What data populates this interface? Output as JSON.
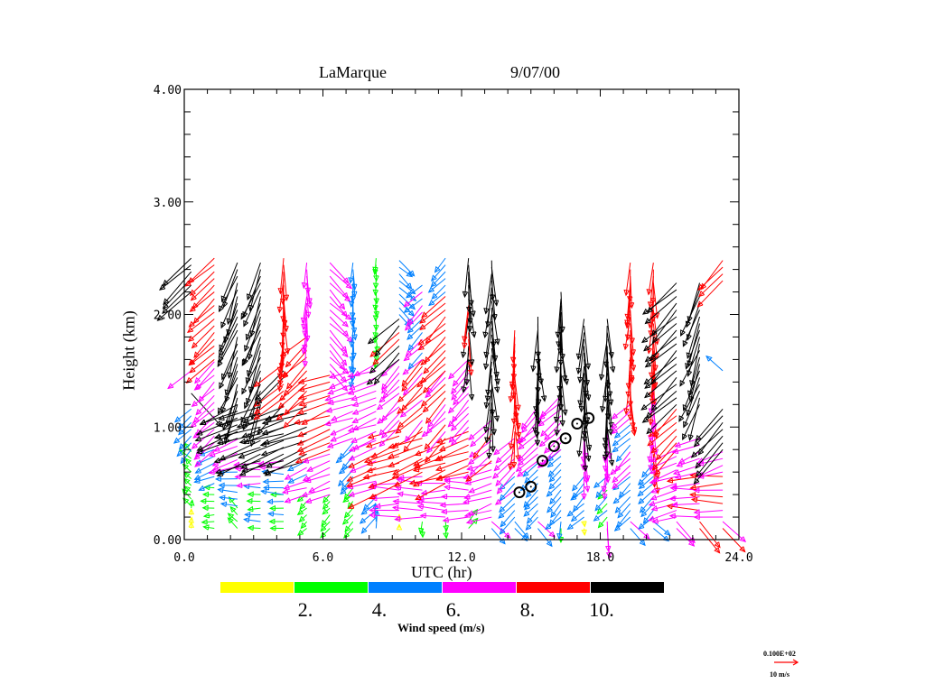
{
  "chart_data": {
    "type": "vector",
    "title": {
      "site": "LaMarque",
      "date": "9/07/00"
    },
    "xlabel": "UTC (hr)",
    "ylabel": "Height (km)",
    "xlim": [
      0,
      24
    ],
    "ylim": [
      0,
      4
    ],
    "xticks": [
      0,
      6,
      12,
      18,
      24
    ],
    "xtick_labels": [
      "0.0",
      "6.0",
      "12.0",
      "18.0",
      "24.0"
    ],
    "yticks": [
      0,
      1,
      2,
      3,
      4
    ],
    "ytick_labels": [
      "0.00",
      "1.00",
      "2.00",
      "3.00",
      "4.00"
    ],
    "x_minor_step": 1,
    "y_minor_step": 0.2,
    "colorbar": {
      "label": "Wind speed (m/s)",
      "colors": [
        "#ffff00",
        "#00ff00",
        "#0080ff",
        "#ff00ff",
        "#ff0000",
        "#000000"
      ],
      "bounds": [
        0,
        2,
        4,
        6,
        8,
        10,
        12
      ],
      "tick_labels": [
        "2.",
        "4.",
        "6.",
        "8.",
        "10."
      ]
    },
    "reference_vector": {
      "value_label": "0.100E+02",
      "units_label": "10 m/s",
      "speed": 10,
      "color": "#ff0000"
    },
    "gate_spacing_km": 0.06,
    "columns": [
      {
        "t": 0.3,
        "layers": [
          [
            0.1,
            0.3,
            1.5,
            "S"
          ],
          [
            0.3,
            0.8,
            3,
            "SE"
          ],
          [
            0.8,
            1.2,
            5,
            "NE"
          ],
          [
            1.3,
            1.3,
            12,
            "NW"
          ],
          [
            1.5,
            1.5,
            7,
            "NE"
          ],
          [
            2.2,
            2.5,
            11,
            "NE"
          ]
        ]
      },
      {
        "t": 1.3,
        "layers": [
          [
            0.1,
            0.5,
            3,
            "E"
          ],
          [
            0.5,
            0.8,
            5,
            "ENE"
          ],
          [
            0.8,
            1.6,
            7,
            "NE"
          ],
          [
            1.6,
            2.5,
            9,
            "NE"
          ]
        ]
      },
      {
        "t": 2.3,
        "layers": [
          [
            0.1,
            0.3,
            3,
            "SE"
          ],
          [
            0.3,
            0.65,
            5,
            "E"
          ],
          [
            0.65,
            0.9,
            7,
            "ENE"
          ],
          [
            0.9,
            1.2,
            11,
            "ENE"
          ],
          [
            1.2,
            2.5,
            11,
            "NNE"
          ]
        ]
      },
      {
        "t": 3.3,
        "layers": [
          [
            0.1,
            0.5,
            4,
            "E"
          ],
          [
            0.5,
            0.7,
            7,
            "E"
          ],
          [
            0.7,
            1.2,
            12,
            "ENE"
          ],
          [
            1.2,
            2.5,
            11,
            "NNE"
          ]
        ]
      },
      {
        "t": 4.3,
        "layers": [
          [
            0.1,
            0.4,
            4,
            "E"
          ],
          [
            0.4,
            0.7,
            6,
            "E"
          ],
          [
            0.7,
            1.2,
            12,
            "ENE"
          ],
          [
            1.2,
            1.6,
            10,
            "NE"
          ],
          [
            1.6,
            2.5,
            9,
            "N"
          ]
        ]
      },
      {
        "t": 5.3,
        "layers": [
          [
            0.1,
            0.4,
            3,
            "NE"
          ],
          [
            0.4,
            0.7,
            6,
            "ENE"
          ],
          [
            0.7,
            1.2,
            12,
            "ENE"
          ],
          [
            1.2,
            1.8,
            9,
            "NE"
          ],
          [
            1.8,
            2.5,
            7,
            "N"
          ]
        ]
      },
      {
        "t": 6.3,
        "layers": [
          [
            0.1,
            0.4,
            3,
            "NE"
          ],
          [
            0.4,
            0.8,
            7,
            "ENE"
          ],
          [
            0.8,
            1.5,
            9,
            "ENE"
          ],
          [
            1.5,
            2.5,
            7,
            "NW"
          ]
        ]
      },
      {
        "t": 7.3,
        "layers": [
          [
            0.1,
            0.5,
            3,
            "NE"
          ],
          [
            0.5,
            0.9,
            5,
            "NE"
          ],
          [
            0.9,
            1.5,
            7,
            "ENE"
          ],
          [
            1.5,
            2.5,
            5,
            "N"
          ]
        ]
      },
      {
        "t": 8.3,
        "layers": [
          [
            0.1,
            0.2,
            4,
            "S"
          ],
          [
            0.2,
            0.4,
            5,
            "NE"
          ],
          [
            0.4,
            0.9,
            8,
            "ENE"
          ],
          [
            0.9,
            1.6,
            7,
            "ENE"
          ],
          [
            1.6,
            2.5,
            3,
            "N"
          ]
        ]
      },
      {
        "t": 9.3,
        "layers": [
          [
            0.1,
            0.2,
            1.5,
            "S"
          ],
          [
            0.2,
            0.5,
            7,
            "E"
          ],
          [
            0.5,
            1.0,
            9,
            "ENE"
          ],
          [
            1.0,
            1.6,
            7,
            "NE"
          ],
          [
            1.6,
            2.0,
            10,
            "NE"
          ],
          [
            2.0,
            2.5,
            5,
            "NW"
          ]
        ]
      },
      {
        "t": 10.3,
        "layers": [
          [
            0.1,
            0.2,
            3,
            "N"
          ],
          [
            0.2,
            0.6,
            7,
            "E"
          ],
          [
            0.6,
            1.0,
            9,
            "ENE"
          ],
          [
            1.0,
            1.6,
            8,
            "NE"
          ],
          [
            1.6,
            2.3,
            6,
            "NE"
          ]
        ]
      },
      {
        "t": 11.3,
        "layers": [
          [
            0.1,
            0.2,
            3,
            "N"
          ],
          [
            0.2,
            0.5,
            7,
            "E"
          ],
          [
            0.5,
            0.9,
            9,
            "ENE"
          ],
          [
            0.9,
            1.5,
            8,
            "NE"
          ],
          [
            1.5,
            2.2,
            9,
            "NE"
          ],
          [
            2.2,
            2.5,
            5,
            "NE"
          ]
        ]
      },
      {
        "t": 12.3,
        "layers": [
          [
            0.1,
            0.2,
            4,
            "SW"
          ],
          [
            0.2,
            0.6,
            7,
            "E"
          ],
          [
            0.6,
            1.0,
            9,
            "ENE"
          ],
          [
            1.0,
            1.6,
            7,
            "NE"
          ],
          [
            1.6,
            2.5,
            10,
            "N"
          ]
        ]
      },
      {
        "t": 13.3,
        "layers": [
          [
            0.1,
            0.2,
            6,
            "NW"
          ],
          [
            0.2,
            0.7,
            7,
            "ENE"
          ],
          [
            0.7,
            1.1,
            8,
            "NE"
          ],
          [
            1.1,
            2.5,
            11,
            "N"
          ]
        ]
      },
      {
        "t": 14.3,
        "layers": [
          [
            0.1,
            0.2,
            5,
            "NW"
          ],
          [
            0.2,
            0.6,
            6,
            "NE"
          ],
          [
            0.6,
            0.9,
            7,
            "NE"
          ],
          [
            0.9,
            1.9,
            9,
            "N"
          ]
        ]
      },
      {
        "t": 15.3,
        "layers": [
          [
            0.1,
            0.2,
            6,
            "NW"
          ],
          [
            0.2,
            0.7,
            5,
            "NE"
          ],
          [
            0.7,
            1.2,
            7,
            "NE"
          ],
          [
            1.2,
            2.0,
            11,
            "N"
          ]
        ]
      },
      {
        "t": 16.3,
        "layers": [
          [
            0.1,
            0.2,
            4,
            "N"
          ],
          [
            0.2,
            0.8,
            5,
            "NE"
          ],
          [
            0.8,
            1.3,
            7,
            "NE"
          ],
          [
            1.3,
            2.2,
            11,
            "N"
          ]
        ]
      },
      {
        "t": 17.3,
        "layers": [
          [
            0.1,
            0.2,
            2,
            "N"
          ],
          [
            0.2,
            0.6,
            5,
            "NE"
          ],
          [
            0.6,
            1.0,
            7,
            "N"
          ],
          [
            1.0,
            2.0,
            11,
            "N"
          ]
        ]
      },
      {
        "t": 18.3,
        "layers": [
          [
            0.1,
            0.2,
            8,
            "N"
          ],
          [
            0.2,
            0.6,
            4,
            "NE"
          ],
          [
            0.6,
            1.0,
            7,
            "N"
          ],
          [
            1.0,
            2.0,
            11,
            "N"
          ]
        ]
      },
      {
        "t": 19.3,
        "layers": [
          [
            0.1,
            0.2,
            6,
            "NW"
          ],
          [
            0.2,
            0.6,
            5,
            "NE"
          ],
          [
            0.6,
            1.2,
            6,
            "NE"
          ],
          [
            1.2,
            2.5,
            9,
            "N"
          ]
        ]
      },
      {
        "t": 20.3,
        "layers": [
          [
            0.1,
            0.2,
            5,
            "NW"
          ],
          [
            0.2,
            0.7,
            5,
            "NE"
          ],
          [
            0.7,
            1.5,
            8,
            "N"
          ],
          [
            1.5,
            2.5,
            9,
            "N"
          ]
        ]
      },
      {
        "t": 21.3,
        "layers": [
          [
            0.1,
            0.2,
            7,
            "NW"
          ],
          [
            0.2,
            0.8,
            7,
            "ENE"
          ],
          [
            0.8,
            1.2,
            9,
            "NE"
          ],
          [
            1.2,
            2.3,
            11,
            "NE"
          ]
        ]
      },
      {
        "t": 22.3,
        "layers": [
          [
            0.1,
            0.2,
            8,
            "NW"
          ],
          [
            0.2,
            0.6,
            8,
            "E"
          ],
          [
            0.6,
            0.9,
            7,
            "ENE"
          ],
          [
            1.2,
            2.3,
            11,
            "NNE"
          ]
        ]
      },
      {
        "t": 23.3,
        "layers": [
          [
            0.1,
            0.2,
            8,
            "NW"
          ],
          [
            0.2,
            0.6,
            8,
            "E"
          ],
          [
            0.6,
            0.8,
            7,
            "ENE"
          ],
          [
            0.8,
            1.2,
            11,
            "NE"
          ],
          [
            1.5,
            1.5,
            6,
            "SE"
          ],
          [
            2.3,
            2.5,
            9,
            "NE"
          ]
        ]
      }
    ],
    "markers": [
      {
        "t": 14.5,
        "h": 0.42
      },
      {
        "t": 15.0,
        "h": 0.47
      },
      {
        "t": 15.5,
        "h": 0.7
      },
      {
        "t": 16.0,
        "h": 0.83
      },
      {
        "t": 16.5,
        "h": 0.9
      },
      {
        "t": 17.0,
        "h": 1.03
      },
      {
        "t": 17.5,
        "h": 1.08
      }
    ]
  }
}
